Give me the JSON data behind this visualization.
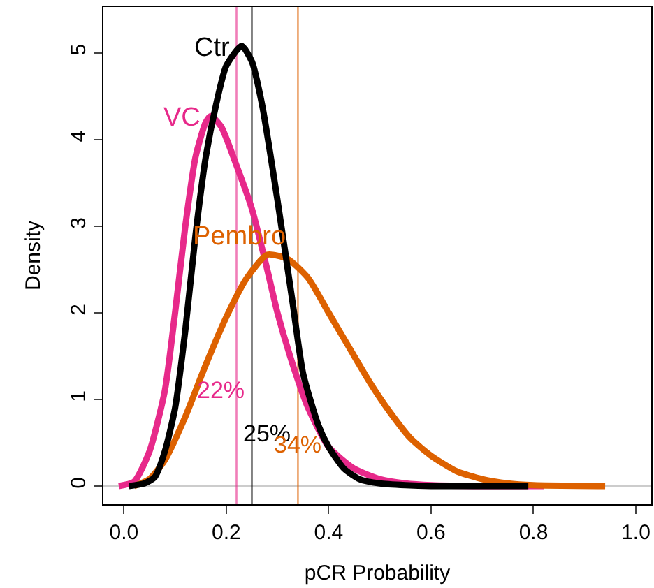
{
  "chart_data": {
    "type": "line",
    "xlabel": "pCR Probability",
    "ylabel": "Density",
    "xlim": [
      -0.04,
      1.03
    ],
    "xticks": [
      {
        "value": 0,
        "label": "0.0"
      },
      0.2,
      0.4,
      0.6,
      0.8,
      {
        "value": 1,
        "label": "1.0"
      }
    ],
    "ylim": [
      -0.21,
      5.53
    ],
    "yticks": [
      0,
      1,
      2,
      3,
      4,
      5
    ],
    "grid": false,
    "legend": false,
    "series": [
      {
        "name": "VC",
        "color": "#e7298a",
        "x": [
          -0.01,
          0.02,
          0.05,
          0.08,
          0.1,
          0.12,
          0.14,
          0.16,
          0.17,
          0.19,
          0.22,
          0.25,
          0.28,
          0.3,
          0.33,
          0.36,
          0.4,
          0.45,
          0.5,
          0.55,
          0.6,
          0.7,
          0.82
        ],
        "values": [
          0,
          0.05,
          0.4,
          1.1,
          2.0,
          3.0,
          3.8,
          4.2,
          4.27,
          4.15,
          3.7,
          3.2,
          2.5,
          2.0,
          1.4,
          0.9,
          0.45,
          0.2,
          0.08,
          0.03,
          0.01,
          0,
          0
        ]
      },
      {
        "name": "Pembro",
        "color": "#dd6100",
        "x": [
          0.02,
          0.05,
          0.08,
          0.12,
          0.16,
          0.2,
          0.24,
          0.28,
          0.32,
          0.36,
          0.4,
          0.44,
          0.48,
          0.52,
          0.56,
          0.6,
          0.65,
          0.7,
          0.75,
          0.8,
          0.94
        ],
        "values": [
          0,
          0.08,
          0.3,
          0.8,
          1.4,
          1.95,
          2.4,
          2.67,
          2.62,
          2.4,
          2.0,
          1.6,
          1.2,
          0.85,
          0.55,
          0.35,
          0.17,
          0.08,
          0.03,
          0.01,
          0
        ]
      },
      {
        "name": "Ctr",
        "color": "#000000",
        "x": [
          0.01,
          0.04,
          0.06,
          0.08,
          0.1,
          0.12,
          0.14,
          0.16,
          0.18,
          0.2,
          0.23,
          0.25,
          0.27,
          0.3,
          0.33,
          0.35,
          0.38,
          0.4,
          0.43,
          0.46,
          0.5,
          0.55,
          0.6,
          0.79
        ],
        "values": [
          0,
          0.03,
          0.1,
          0.4,
          0.9,
          1.8,
          2.9,
          3.8,
          4.4,
          4.85,
          5.08,
          4.9,
          4.4,
          3.3,
          2.1,
          1.3,
          0.7,
          0.45,
          0.2,
          0.08,
          0.03,
          0.01,
          0,
          0
        ]
      }
    ],
    "ref_lines": [
      {
        "axis": "y",
        "value": 0,
        "color": "#cccccc"
      },
      {
        "axis": "x",
        "value": 0.22,
        "label": "22%",
        "color": "#e7298a"
      },
      {
        "axis": "x",
        "value": 0.25,
        "label": "25%",
        "color": "#000000"
      },
      {
        "axis": "x",
        "value": 0.34,
        "label": "34%",
        "color": "#dd6100"
      }
    ]
  }
}
